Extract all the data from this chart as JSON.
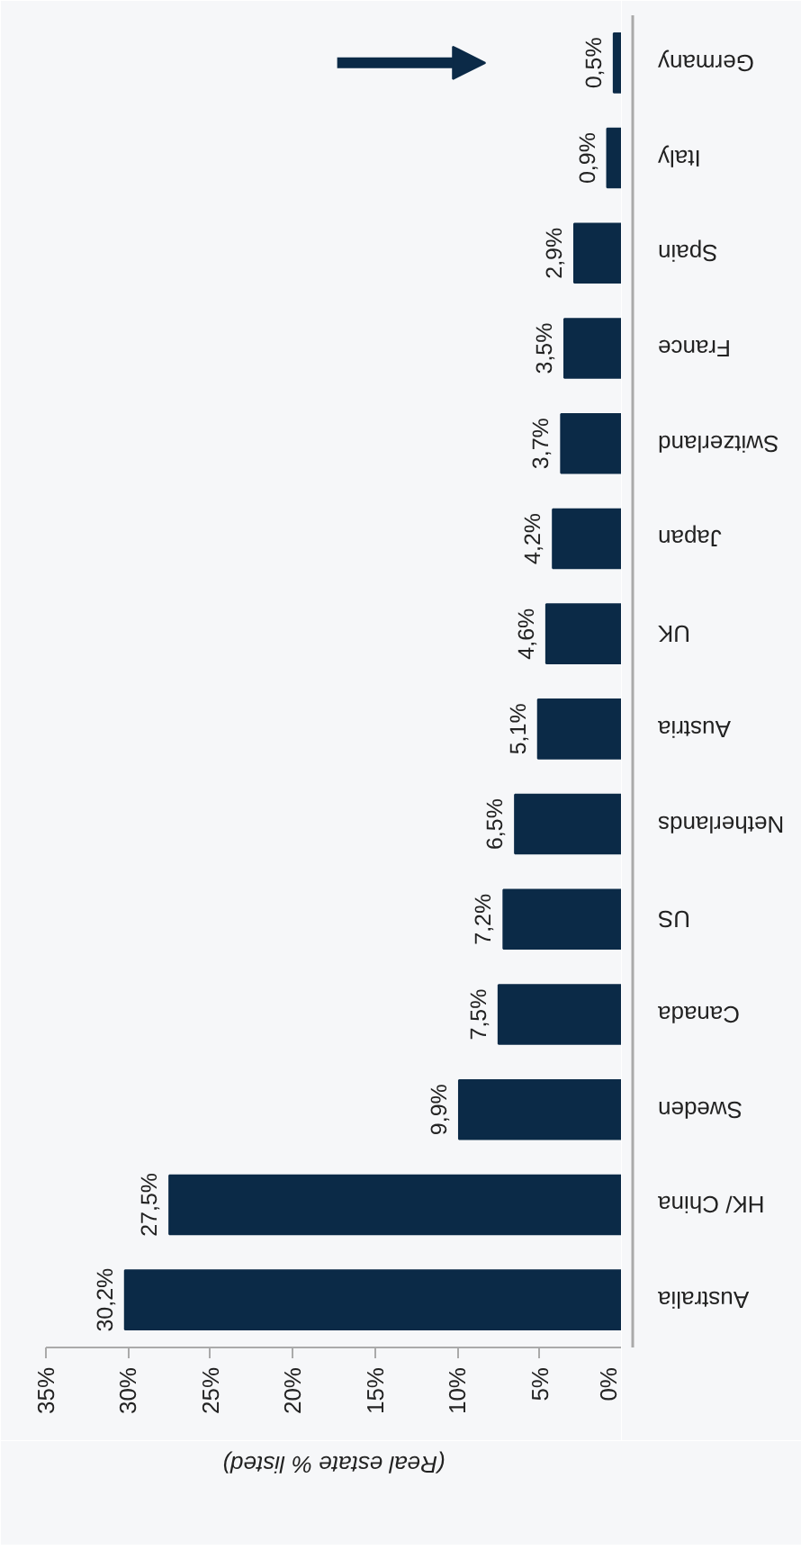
{
  "chart_data": {
    "type": "bar",
    "orientation": "horizontal",
    "xlabel": "(Real estate % listed)",
    "categories": [
      "Germany",
      "Italy",
      "Spain",
      "France",
      "Switzerland",
      "Japan",
      "UK",
      "Austria",
      "Netherlands",
      "US",
      "Canada",
      "Sweden",
      "HK/ China",
      "Australia"
    ],
    "values": [
      0.5,
      0.9,
      2.9,
      3.5,
      3.7,
      4.2,
      4.6,
      5.1,
      6.5,
      7.2,
      7.5,
      9.9,
      27.5,
      30.2
    ],
    "value_labels": [
      "0,5%",
      "0,9%",
      "2,9%",
      "3,5%",
      "3,7%",
      "4,2%",
      "4,6%",
      "5,1%",
      "6,5%",
      "7,2%",
      "7,5%",
      "9,9%",
      "27,5%",
      "30,2%"
    ],
    "color": "#0b2a47",
    "xlim": [
      35,
      0
    ],
    "xticks": [
      {
        "value": 35,
        "label": "35%"
      },
      {
        "value": 30,
        "label": "30%"
      },
      {
        "value": 25,
        "label": "25%"
      },
      {
        "value": 20,
        "label": "20%"
      },
      {
        "value": 15,
        "label": "15%"
      },
      {
        "value": 10,
        "label": "10%"
      },
      {
        "value": 5,
        "label": "5%"
      },
      {
        "value": 0,
        "label": "0%"
      }
    ]
  }
}
